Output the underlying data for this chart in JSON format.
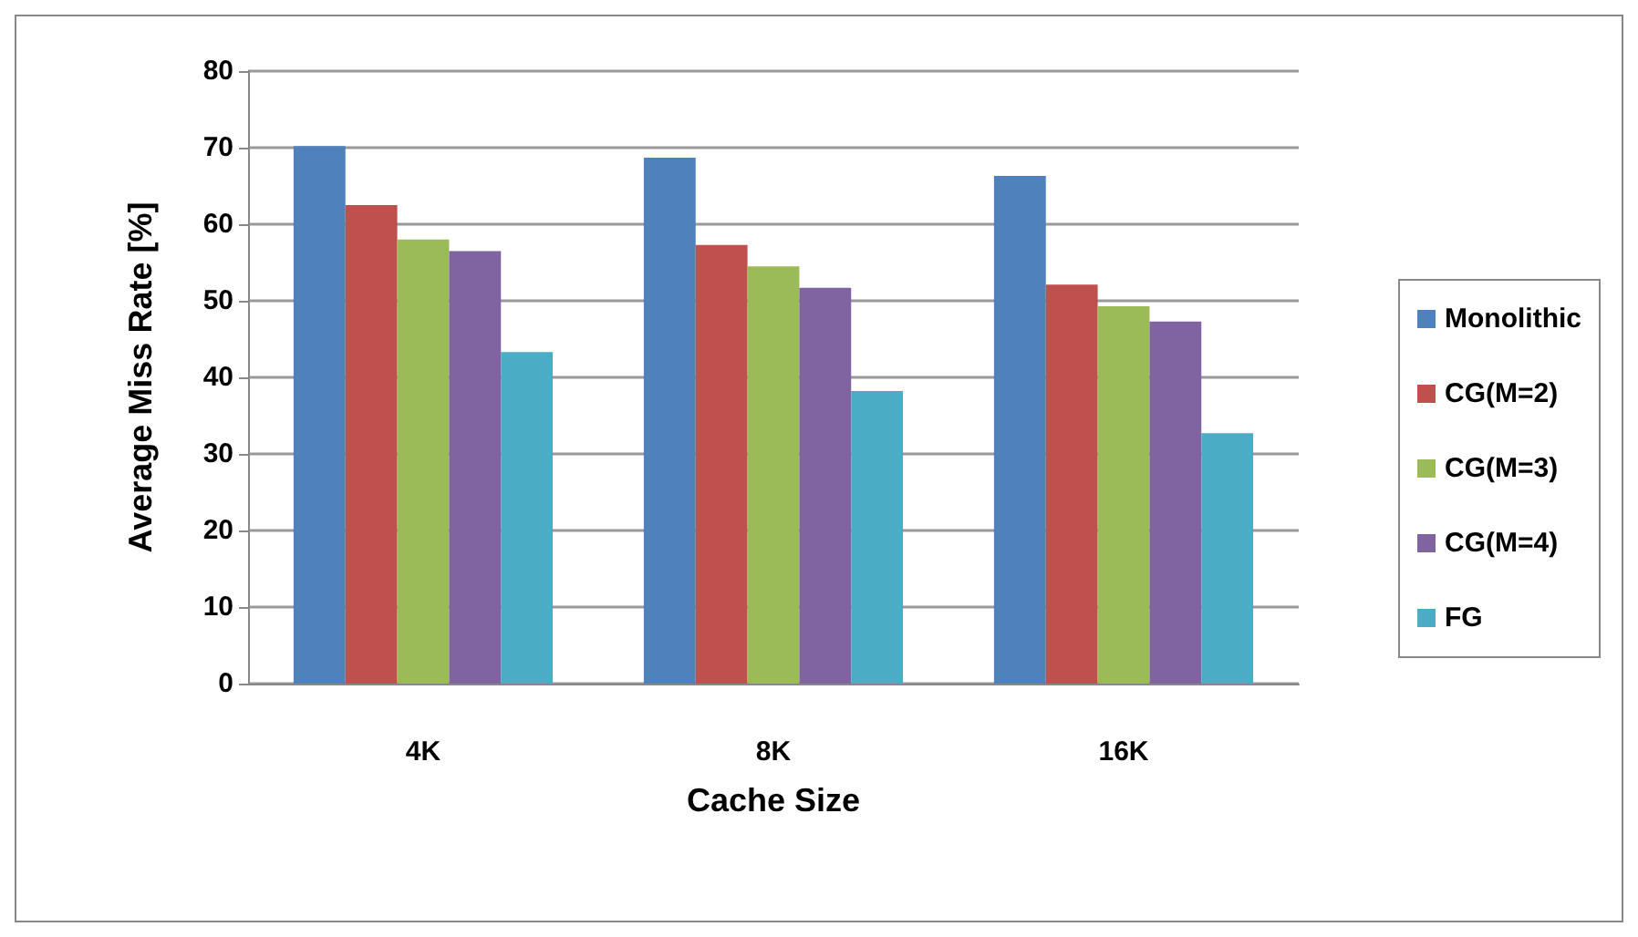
{
  "chart_data": {
    "type": "bar",
    "xlabel": "Cache Size",
    "ylabel": "Average Miss Rate [%]",
    "categories": [
      "4K",
      "8K",
      "16K"
    ],
    "series": [
      {
        "name": "Monolithic",
        "color": "#4f81bd",
        "values": [
          70.2,
          68.7,
          66.3
        ]
      },
      {
        "name": "CG(M=2)",
        "color": "#c0504d",
        "values": [
          62.5,
          57.3,
          52.1
        ]
      },
      {
        "name": "CG(M=3)",
        "color": "#9bbb59",
        "values": [
          58,
          54.5,
          49.3
        ]
      },
      {
        "name": "CG(M=4)",
        "color": "#8064a2",
        "values": [
          56.5,
          51.7,
          47.3
        ]
      },
      {
        "name": "FG",
        "color": "#4bacc6",
        "values": [
          43.3,
          38.2,
          32.7
        ]
      }
    ],
    "ylim": [
      0,
      80
    ],
    "yticks": [
      0,
      10,
      20,
      30,
      40,
      50,
      60,
      70,
      80
    ],
    "grid": "y",
    "legend": "right"
  }
}
